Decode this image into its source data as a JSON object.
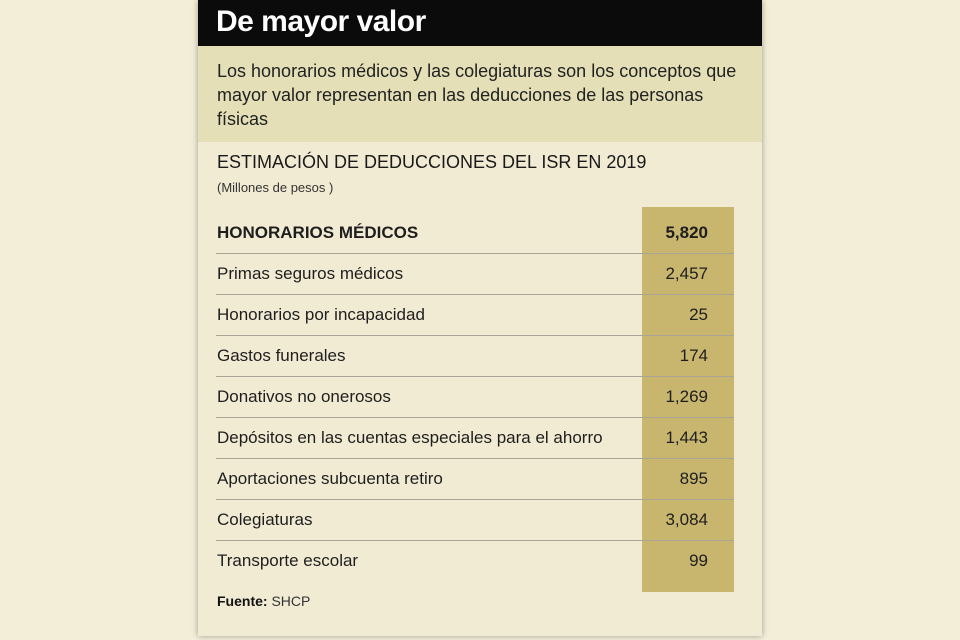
{
  "header": {
    "title": "De mayor valor"
  },
  "subtitle": "Los honorarios médicos y las colegiaturas son los conceptos que mayor valor representan en las deducciones de las personas físicas",
  "table": {
    "title": "ESTIMACIÓN DE DEDUCCIONES DEL ISR EN 2019",
    "unit": "(Millones de pesos )",
    "rows": [
      {
        "label": "HONORARIOS MÉDICOS",
        "value": "5,820"
      },
      {
        "label": "Primas seguros médicos",
        "value": "2,457"
      },
      {
        "label": "Honorarios por incapacidad",
        "value": "25"
      },
      {
        "label": "Gastos funerales",
        "value": "174"
      },
      {
        "label": "Donativos no onerosos",
        "value": "1,269"
      },
      {
        "label": "Depósitos en las cuentas especiales para el ahorro",
        "value": "1,443"
      },
      {
        "label": "Aportaciones subcuenta retiro",
        "value": "895"
      },
      {
        "label": "Colegiaturas",
        "value": "3,084"
      },
      {
        "label": "Transporte escolar",
        "value": "99"
      }
    ]
  },
  "source": {
    "label": "Fuente:",
    "value": "SHCP"
  }
}
